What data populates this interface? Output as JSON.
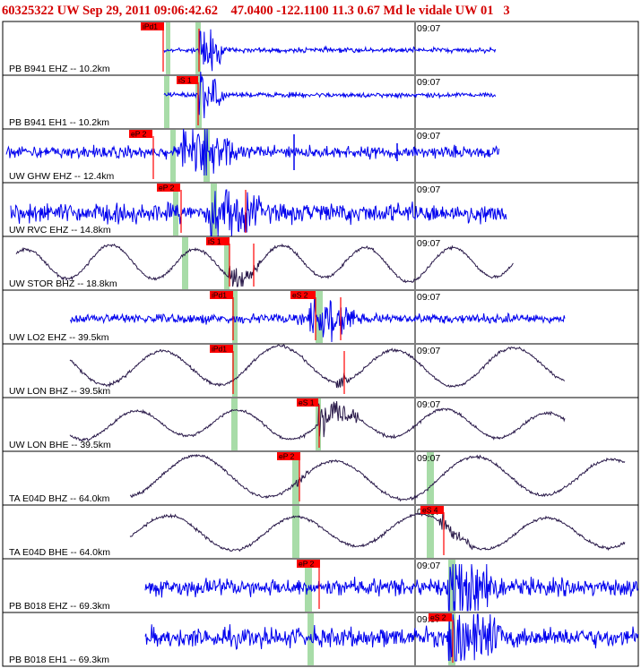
{
  "header": {
    "event_id": "60325322",
    "network": "UW",
    "datetime": "Sep 29, 2011 09:06:42.62",
    "lat": "47.0400",
    "lon": "-122.1100",
    "depth": "11.3",
    "magnitude": "0.67 Md",
    "place": "le vidale",
    "tail": "UW 01",
    "count": "3"
  },
  "colors": {
    "header_text": "#d40000",
    "trace_blue": "#0000ee",
    "trace_dark": "#2a1a4a",
    "pick_flag": "#ff0000",
    "pick_band": "#a8dca8",
    "time_marker": "#000000"
  },
  "panels": [
    {
      "label": "PB B941 EHZ -- 10.2km",
      "time": "09:07",
      "trace": "blue",
      "picks": [
        "iPd1",
        ""
      ]
    },
    {
      "label": "PB B941 EH1 -- 10.2km",
      "time": "09:07",
      "trace": "blue",
      "picks": [
        "iS 1"
      ]
    },
    {
      "label": "UW GHW EHZ -- 12.4km",
      "time": "09:07",
      "trace": "blue",
      "picks": [
        "eP 2"
      ]
    },
    {
      "label": "UW RVC EHZ -- 14.8km",
      "time": "09:07",
      "trace": "blue",
      "picks": [
        "eP 2"
      ]
    },
    {
      "label": "UW STOR BHZ -- 18.8km",
      "time": "09:07",
      "trace": "dark",
      "picks": [
        "iS 1"
      ]
    },
    {
      "label": "UW LO2 EHZ -- 39.5km",
      "time": "09:07",
      "trace": "blue",
      "picks": [
        "iPd1",
        "eS 2"
      ]
    },
    {
      "label": "UW LON BHZ -- 39.5km",
      "time": "09:07",
      "trace": "dark",
      "picks": [
        "iPd1"
      ]
    },
    {
      "label": "UW LON BHE -- 39.5km",
      "time": "09:07",
      "trace": "dark",
      "picks": [
        "eS 1"
      ]
    },
    {
      "label": "TA E04D BHZ -- 64.0km",
      "time": "09:07",
      "trace": "dark",
      "picks": [
        "eP 2"
      ]
    },
    {
      "label": "TA E04D BHE -- 64.0km",
      "time": "09:07",
      "trace": "dark",
      "picks": [
        "eS 4"
      ]
    },
    {
      "label": "PB B018 EHZ -- 69.3km",
      "time": "09:07",
      "trace": "blue",
      "picks": [
        "eP 2"
      ]
    },
    {
      "label": "PB B018 EH1 -- 69.3km",
      "time": "09:07",
      "trace": "blue",
      "picks": [
        "eS 2"
      ]
    }
  ]
}
